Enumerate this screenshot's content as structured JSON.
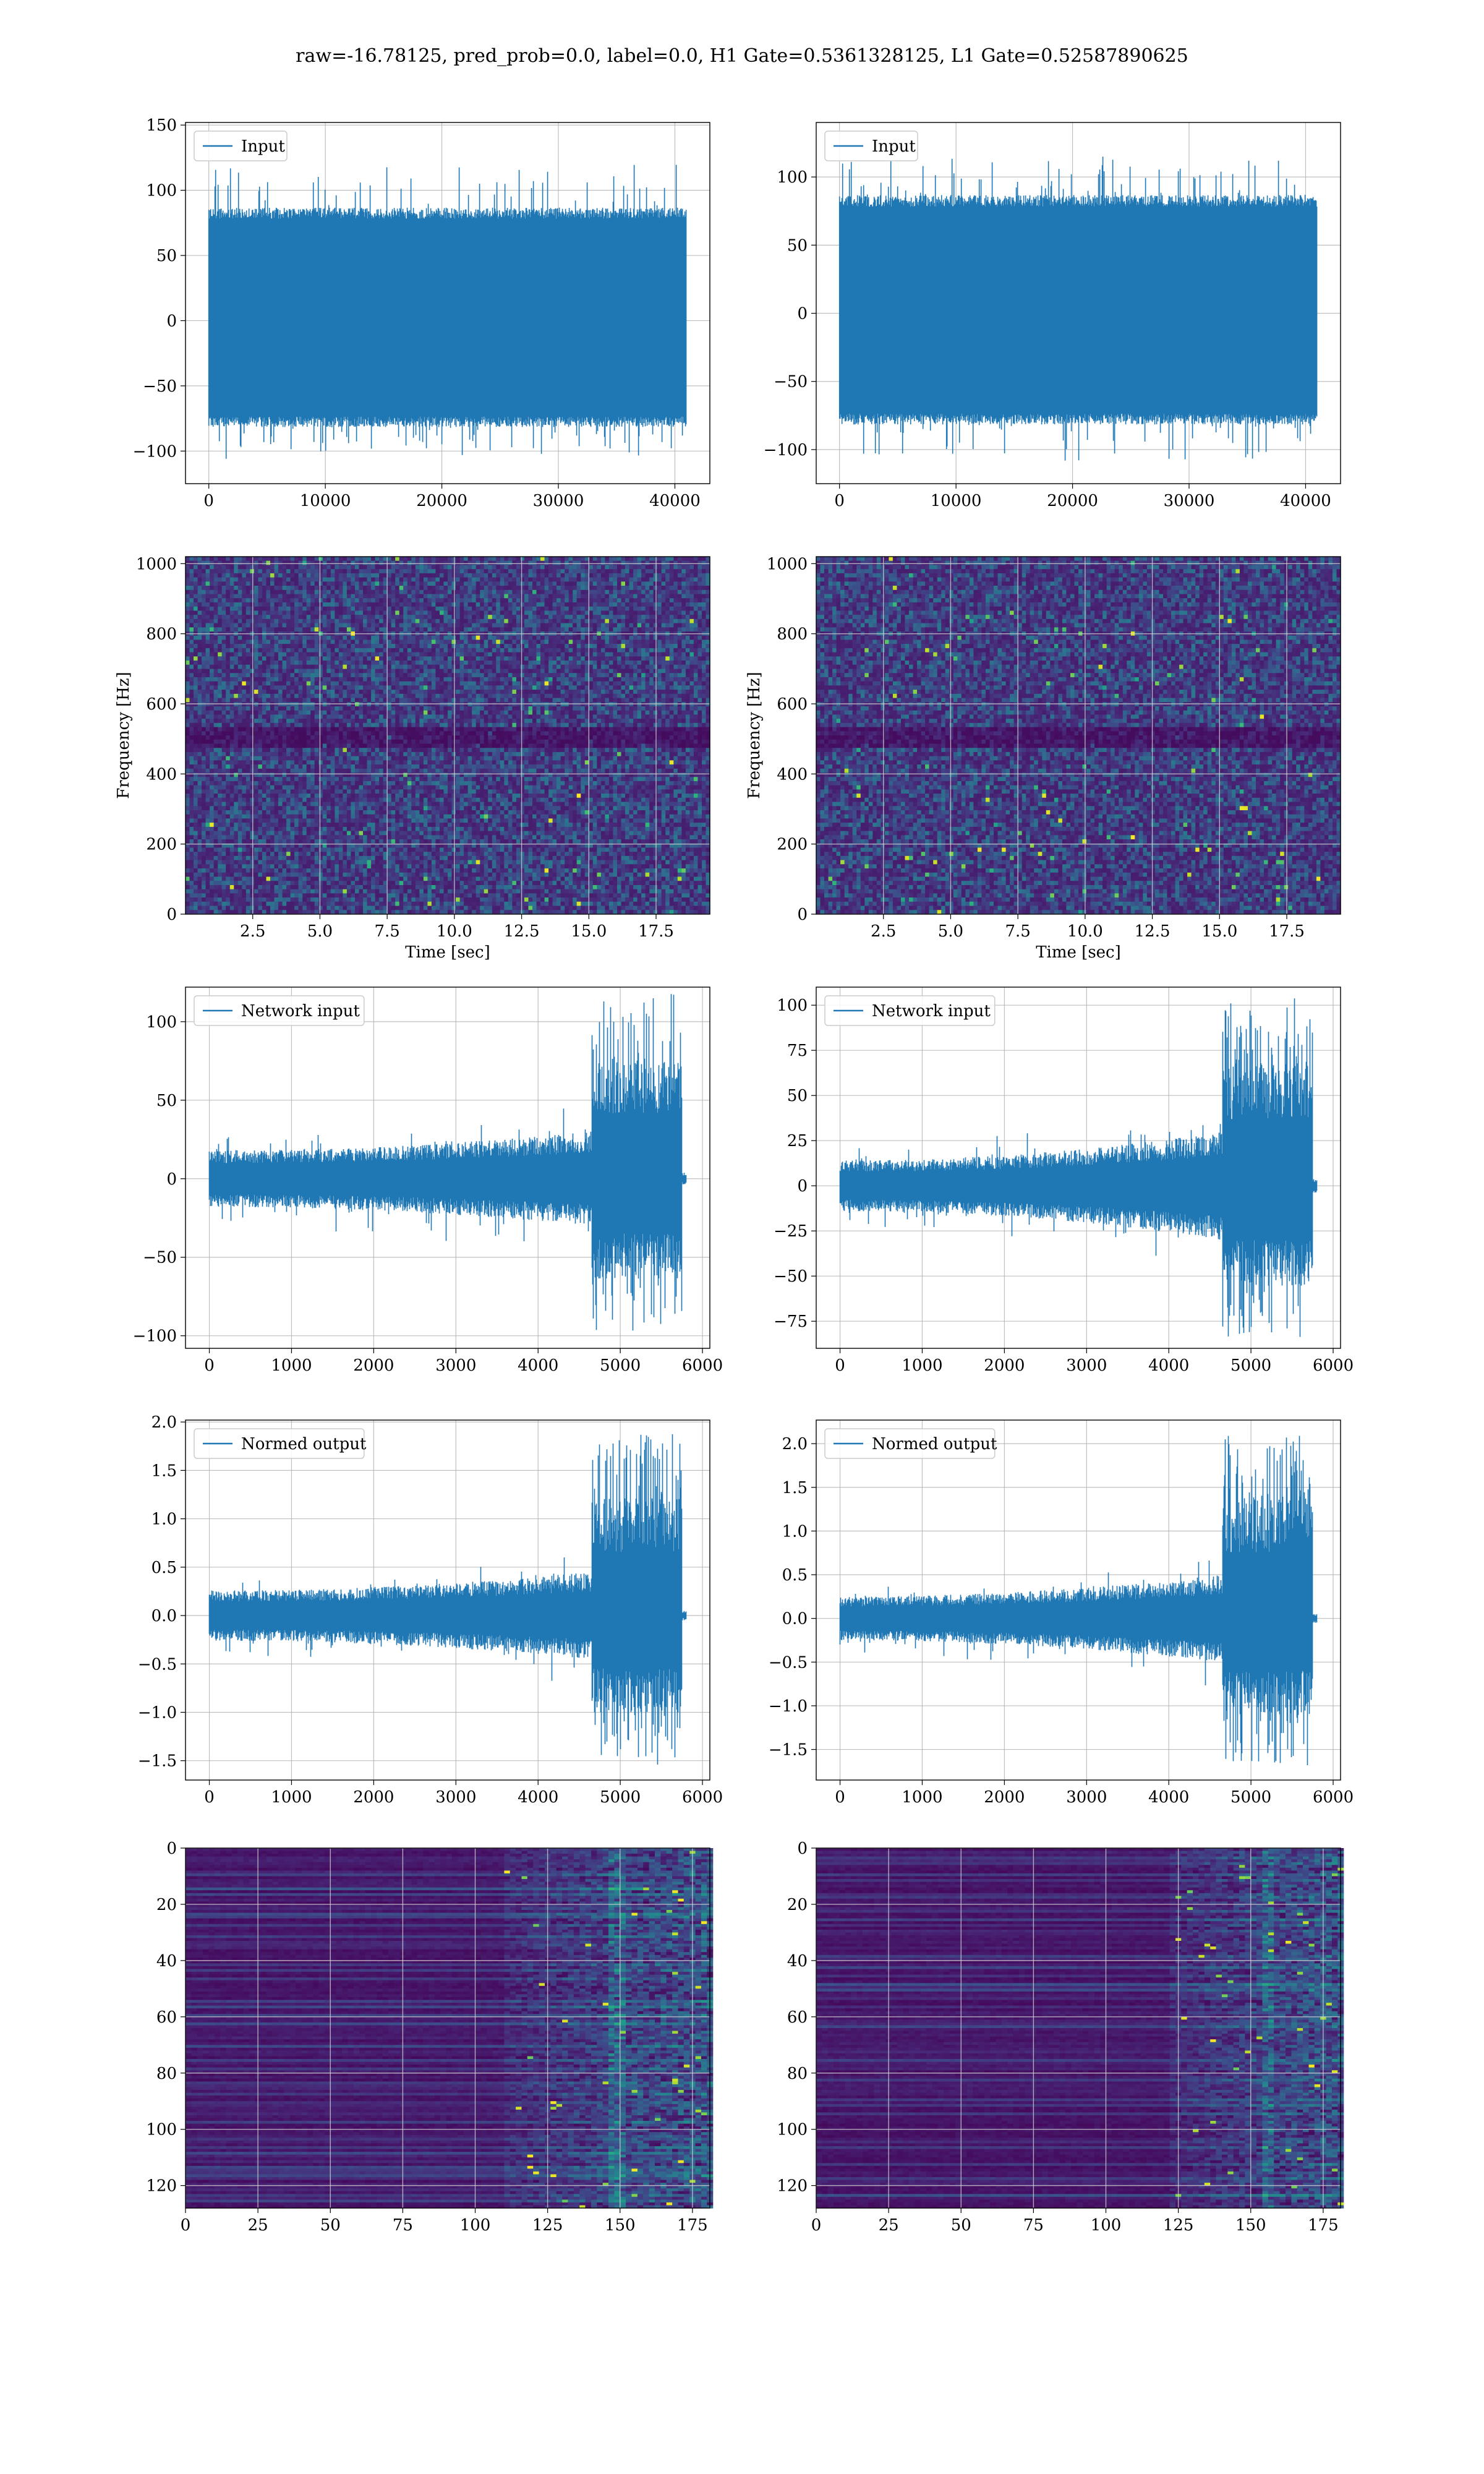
{
  "figure": {
    "suptitle": "raw=-16.78125, pred_prob=0.0, label=0.0, H1 Gate=0.5361328125, L1 Gate=0.52587890625"
  },
  "colors": {
    "line": "#1f77b4",
    "grid": "#b0b0b0"
  },
  "chart_data": [
    {
      "id": "input-h1",
      "row": 0,
      "col": 0,
      "type": "line",
      "legend": "Input",
      "legend_placement": "upper-left",
      "grid": true,
      "xlim": [
        -2000,
        43000
      ],
      "ylim": [
        -125,
        152
      ],
      "xticks": [
        0,
        10000,
        20000,
        30000,
        40000
      ],
      "yticks": [
        -100,
        -50,
        0,
        50,
        100,
        150
      ],
      "x_range": [
        0,
        40960
      ],
      "envelope": {
        "kind": "noise",
        "lo": -105,
        "hi": 120,
        "dense_lo": -80,
        "dense_hi": 85
      }
    },
    {
      "id": "input-l1",
      "row": 0,
      "col": 1,
      "type": "line",
      "legend": "Input",
      "legend_placement": "upper-left",
      "grid": true,
      "xlim": [
        -2000,
        43000
      ],
      "ylim": [
        -125,
        140
      ],
      "xticks": [
        0,
        10000,
        20000,
        30000,
        40000
      ],
      "yticks": [
        -100,
        -50,
        0,
        50,
        100
      ],
      "x_range": [
        0,
        40960
      ],
      "envelope": {
        "kind": "noise",
        "lo": -110,
        "hi": 115,
        "dense_lo": -80,
        "dense_hi": 85
      }
    },
    {
      "id": "spectrogram-h1",
      "row": 1,
      "col": 0,
      "type": "heatmap",
      "xlabel": "Time [sec]",
      "ylabel": "Frequency [Hz]",
      "grid": true,
      "xlim": [
        0.0,
        19.5
      ],
      "ylim": [
        0,
        1020
      ],
      "xticks": [
        2.5,
        5.0,
        7.5,
        10.0,
        12.5,
        15.0,
        17.5
      ],
      "yticks": [
        0,
        200,
        400,
        600,
        800,
        1000
      ],
      "colormap": "viridis",
      "dark_band_hz": 505
    },
    {
      "id": "spectrogram-l1",
      "row": 1,
      "col": 1,
      "type": "heatmap",
      "xlabel": "Time [sec]",
      "ylabel": "Frequency [Hz]",
      "grid": true,
      "xlim": [
        0.0,
        19.5
      ],
      "ylim": [
        0,
        1020
      ],
      "xticks": [
        2.5,
        5.0,
        7.5,
        10.0,
        12.5,
        15.0,
        17.5
      ],
      "yticks": [
        0,
        200,
        400,
        600,
        800,
        1000
      ],
      "colormap": "viridis",
      "dark_band_hz": 505
    },
    {
      "id": "network-input-h1",
      "row": 2,
      "col": 0,
      "type": "line",
      "legend": "Network input",
      "legend_placement": "upper-left",
      "grid": true,
      "xlim": [
        -290,
        6090
      ],
      "ylim": [
        -108,
        122
      ],
      "xticks": [
        0,
        1000,
        2000,
        3000,
        4000,
        5000,
        6000
      ],
      "yticks": [
        -100,
        -50,
        0,
        50,
        100
      ],
      "x_range": [
        0,
        5800
      ],
      "envelope": {
        "kind": "burst",
        "base": 18,
        "ramp_to": 30,
        "burst_start": 4650,
        "burst_end": 5750,
        "burst_hi": 118,
        "burst_lo": -98,
        "tail_end": 5800,
        "tail_amp": 4
      }
    },
    {
      "id": "network-input-l1",
      "row": 2,
      "col": 1,
      "type": "line",
      "legend": "Network input",
      "legend_placement": "upper-left",
      "grid": true,
      "xlim": [
        -290,
        6090
      ],
      "ylim": [
        -90,
        110
      ],
      "xticks": [
        0,
        1000,
        2000,
        3000,
        4000,
        5000,
        6000
      ],
      "yticks": [
        -75,
        -50,
        -25,
        0,
        25,
        50,
        75,
        100
      ],
      "x_range": [
        0,
        5800
      ],
      "envelope": {
        "kind": "burst",
        "base": 14,
        "ramp_to": 30,
        "burst_start": 4650,
        "burst_end": 5750,
        "burst_hi": 105,
        "burst_lo": -85,
        "tail_end": 5800,
        "tail_amp": 4
      }
    },
    {
      "id": "normed-output-h1",
      "row": 3,
      "col": 0,
      "type": "line",
      "legend": "Normed output",
      "legend_placement": "upper-left",
      "grid": true,
      "xlim": [
        -290,
        6090
      ],
      "ylim": [
        -1.7,
        2.02
      ],
      "xticks": [
        0,
        1000,
        2000,
        3000,
        4000,
        5000,
        6000
      ],
      "yticks": [
        -1.5,
        -1.0,
        -0.5,
        0.0,
        0.5,
        1.0,
        1.5,
        2.0
      ],
      "x_range": [
        0,
        5800
      ],
      "envelope": {
        "kind": "burst",
        "base": 0.26,
        "ramp_to": 0.45,
        "burst_start": 4650,
        "burst_end": 5750,
        "burst_hi": 1.88,
        "burst_lo": -1.55,
        "tail_end": 5800,
        "tail_amp": 0.05
      }
    },
    {
      "id": "normed-output-l1",
      "row": 3,
      "col": 1,
      "type": "line",
      "legend": "Normed output",
      "legend_placement": "upper-left",
      "grid": true,
      "xlim": [
        -290,
        6090
      ],
      "ylim": [
        -1.85,
        2.27
      ],
      "xticks": [
        0,
        1000,
        2000,
        3000,
        4000,
        5000,
        6000
      ],
      "yticks": [
        -1.5,
        -1.0,
        -0.5,
        0.0,
        0.5,
        1.0,
        1.5,
        2.0
      ],
      "x_range": [
        0,
        5800
      ],
      "envelope": {
        "kind": "burst",
        "base": 0.25,
        "ramp_to": 0.5,
        "burst_start": 4650,
        "burst_end": 5750,
        "burst_hi": 2.15,
        "burst_lo": -1.7,
        "tail_end": 5800,
        "tail_amp": 0.05
      }
    },
    {
      "id": "feature-map-h1",
      "row": 4,
      "col": 0,
      "type": "heatmap",
      "grid": true,
      "xlim": [
        0,
        181
      ],
      "ylim": [
        128,
        0
      ],
      "xticks": [
        0,
        25,
        50,
        75,
        100,
        125,
        150,
        175
      ],
      "yticks": [
        0,
        20,
        40,
        60,
        80,
        100,
        120
      ],
      "colormap": "viridis",
      "activity_start_col": 110,
      "hot_col": 148
    },
    {
      "id": "feature-map-l1",
      "row": 4,
      "col": 1,
      "type": "heatmap",
      "grid": true,
      "xlim": [
        0,
        181
      ],
      "ylim": [
        128,
        0
      ],
      "xticks": [
        0,
        25,
        50,
        75,
        100,
        125,
        150,
        175
      ],
      "yticks": [
        0,
        20,
        40,
        60,
        80,
        100,
        120
      ],
      "colormap": "viridis",
      "activity_start_col": 122,
      "hot_col": 155
    }
  ]
}
